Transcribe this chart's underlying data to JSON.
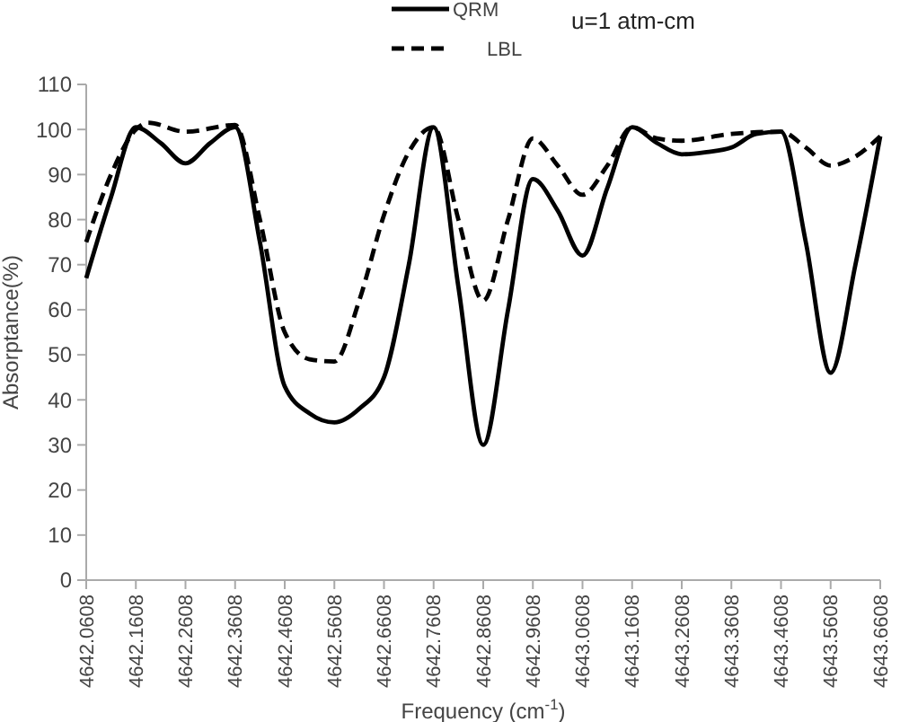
{
  "chart_data": {
    "type": "line",
    "xlabel": "Frequency (cm$^{-1}$)",
    "ylabel": "Absorptance(%)",
    "annotations": [
      "u=1 atm-cm"
    ],
    "legend": "top",
    "grid": false,
    "marker": "none",
    "xlim": [
      4642.0608,
      4643.6608
    ],
    "xticks": [
      4642.0608,
      4642.1608,
      4642.2608,
      4642.3608,
      4642.4608,
      4642.5608,
      4642.6608,
      4642.7608,
      4642.8608,
      4642.9608,
      4643.0608,
      4643.1608,
      4643.2608,
      4643.3608,
      4643.4608,
      4643.5608,
      4643.6608
    ],
    "ylim": [
      0,
      110
    ],
    "yticks": [
      0,
      10,
      20,
      30,
      40,
      50,
      60,
      70,
      80,
      90,
      100,
      110
    ],
    "series": [
      {
        "name": "QRM",
        "color": "#000000",
        "line_style": "solid",
        "x": [
          4642.0608,
          4642.1108,
          4642.1608,
          4642.2108,
          4642.2608,
          4642.3108,
          4642.3608,
          4642.4108,
          4642.4608,
          4642.5108,
          4642.5608,
          4642.6108,
          4642.6608,
          4642.7108,
          4642.7608,
          4642.8108,
          4642.8608,
          4642.9108,
          4642.9608,
          4643.0108,
          4643.0608,
          4643.1108,
          4643.1608,
          4643.2108,
          4643.2608,
          4643.3108,
          4643.3608,
          4643.4108,
          4643.4608,
          4643.5108,
          4643.5608,
          4643.6108,
          4643.6608
        ],
        "values": [
          67,
          85,
          100.5,
          97,
          92.5,
          97,
          100.5,
          75,
          43,
          37,
          35,
          38,
          45,
          70,
          100.5,
          65,
          30,
          60,
          89,
          82,
          72,
          87,
          100.5,
          97,
          94.5,
          95,
          96,
          99,
          99.5,
          75,
          46,
          70,
          98.5
        ]
      },
      {
        "name": "LBL",
        "color": "#000000",
        "line_style": "dashed",
        "x": [
          4642.0608,
          4642.1108,
          4642.1608,
          4642.1858,
          4642.2608,
          4642.3608,
          4642.4108,
          4642.4608,
          4642.5108,
          4642.5608,
          4642.6108,
          4642.6608,
          4642.7108,
          4642.7608,
          4642.8108,
          4642.8608,
          4642.9108,
          4642.9608,
          4643.0108,
          4643.0608,
          4643.1108,
          4643.1608,
          4643.2108,
          4643.2608,
          4643.3608,
          4643.4608,
          4643.5108,
          4643.5608,
          4643.6108,
          4643.6608
        ],
        "values": [
          75,
          90,
          100,
          101.5,
          99.5,
          101,
          80,
          55,
          49,
          48.5,
          62,
          81,
          95,
          100.5,
          80,
          62,
          80,
          98,
          92,
          85.5,
          92,
          100.5,
          98,
          97.5,
          99,
          99.5,
          96,
          92,
          94,
          98.5
        ]
      }
    ]
  }
}
